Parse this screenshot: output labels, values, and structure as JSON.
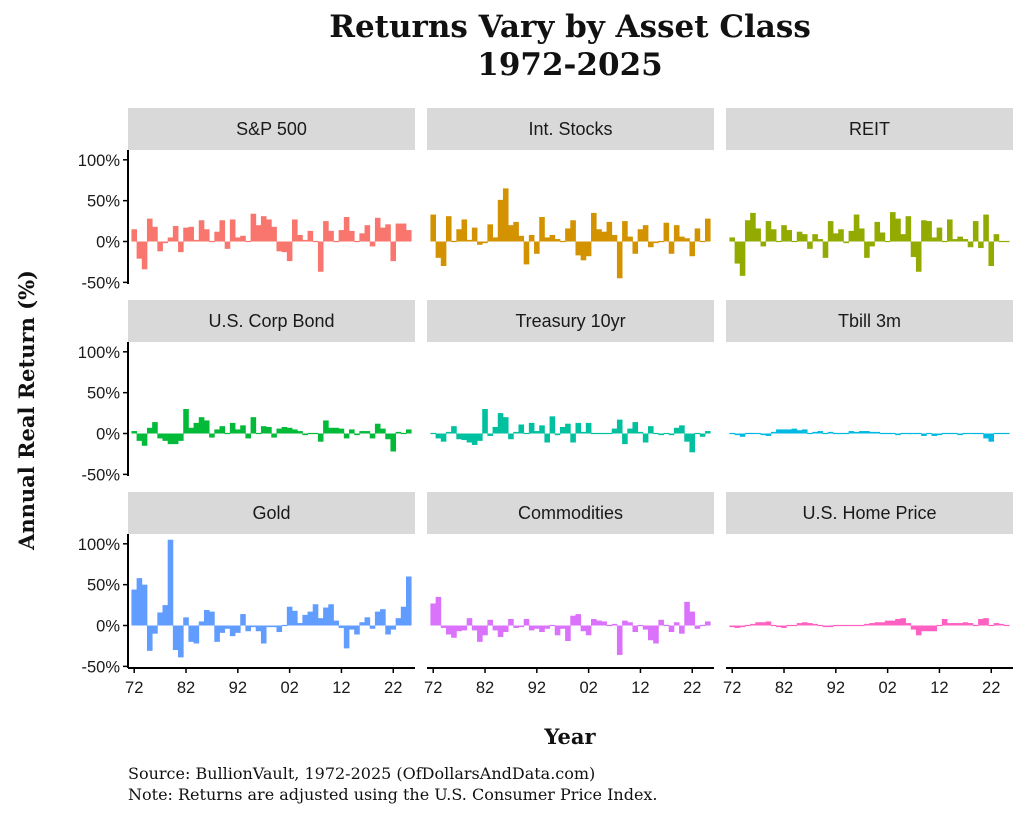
{
  "chart_data": {
    "type": "bar",
    "facet": "3x3",
    "title": [
      "Returns Vary by Asset Class",
      "1972-2025"
    ],
    "xlabel": "Year",
    "ylabel": "Annual Real Return (%)",
    "x": [
      1972,
      1973,
      1974,
      1975,
      1976,
      1977,
      1978,
      1979,
      1980,
      1981,
      1982,
      1983,
      1984,
      1985,
      1986,
      1987,
      1988,
      1989,
      1990,
      1991,
      1992,
      1993,
      1994,
      1995,
      1996,
      1997,
      1998,
      1999,
      2000,
      2001,
      2002,
      2003,
      2004,
      2005,
      2006,
      2007,
      2008,
      2009,
      2010,
      2011,
      2012,
      2013,
      2014,
      2015,
      2016,
      2017,
      2018,
      2019,
      2020,
      2021,
      2022,
      2023,
      2024,
      2025
    ],
    "x_ticks": [
      "72",
      "82",
      "92",
      "02",
      "12",
      "22"
    ],
    "x_tick_years": [
      1972,
      1982,
      1992,
      2002,
      2012,
      2022
    ],
    "ylim": [
      -52,
      112
    ],
    "y_ticks": [
      -50,
      0,
      50,
      100
    ],
    "y_tick_labels": [
      "-50%",
      "0%",
      "50%",
      "100%"
    ],
    "grid": false,
    "legend": "none",
    "panels": [
      {
        "name": "S&P 500",
        "color": "#F8766D",
        "values": [
          15,
          -21,
          -34,
          28,
          18,
          -12,
          -2,
          5,
          19,
          -13,
          17,
          18,
          2,
          26,
          15,
          1,
          12,
          26,
          -9,
          27,
          5,
          7,
          -1,
          34,
          20,
          31,
          27,
          18,
          -12,
          -13,
          -24,
          27,
          8,
          2,
          13,
          1,
          -37,
          25,
          13,
          -1,
          14,
          30,
          13,
          0,
          10,
          20,
          -6,
          29,
          17,
          21,
          -24,
          22,
          22,
          14
        ]
      },
      {
        "name": "Int. Stocks",
        "color": "#D39200",
        "values": [
          33,
          -20,
          -30,
          31,
          0,
          15,
          27,
          2,
          17,
          -4,
          -2,
          21,
          5,
          51,
          65,
          20,
          24,
          7,
          -28,
          8,
          -15,
          30,
          5,
          8,
          3,
          -1,
          16,
          26,
          -17,
          -23,
          -18,
          35,
          15,
          12,
          24,
          8,
          -45,
          25,
          6,
          -15,
          15,
          20,
          -7,
          -2,
          -1,
          23,
          -15,
          20,
          6,
          4,
          -18,
          16,
          1,
          28
        ]
      },
      {
        "name": "REIT",
        "color": "#93AA00",
        "values": [
          5,
          -27,
          -42,
          26,
          35,
          16,
          -6,
          25,
          15,
          -1,
          20,
          14,
          0,
          12,
          9,
          -9,
          9,
          3,
          -20,
          25,
          10,
          15,
          -2,
          13,
          33,
          16,
          -20,
          -6,
          24,
          11,
          1,
          36,
          28,
          9,
          31,
          -19,
          -37,
          26,
          25,
          5,
          17,
          1,
          27,
          3,
          6,
          3,
          -7,
          25,
          -8,
          33,
          -30,
          9,
          -1,
          -1
        ]
      },
      {
        "name": "U.S. Corp Bond",
        "color": "#00BA38",
        "values": [
          3,
          -9,
          -15,
          7,
          14,
          -6,
          -9,
          -13,
          -13,
          -9,
          30,
          7,
          13,
          20,
          16,
          -5,
          5,
          9,
          0,
          13,
          5,
          10,
          -6,
          20,
          1,
          9,
          8,
          -5,
          6,
          8,
          7,
          5,
          3,
          -2,
          1,
          1,
          -10,
          16,
          7,
          7,
          6,
          -6,
          5,
          -2,
          3,
          3,
          -6,
          12,
          6,
          -7,
          -22,
          2,
          -1,
          5
        ]
      },
      {
        "name": "Treasury 10yr",
        "color": "#00C19F",
        "values": [
          -1,
          -6,
          -10,
          2,
          9,
          -7,
          -8,
          -11,
          -14,
          -9,
          30,
          -3,
          8,
          25,
          20,
          -7,
          2,
          11,
          -1,
          13,
          3,
          10,
          -11,
          21,
          -2,
          8,
          12,
          -11,
          13,
          2,
          13,
          -1,
          1,
          0,
          -1,
          6,
          17,
          -13,
          6,
          14,
          2,
          -11,
          9,
          0,
          -2,
          0,
          -2,
          7,
          10,
          -10,
          -23,
          -1,
          -4,
          3
        ]
      },
      {
        "name": "Tbill 3m",
        "color": "#00B9E3",
        "values": [
          0,
          -2,
          -4,
          -1,
          0,
          -1,
          -2,
          -3,
          2,
          5,
          5,
          5,
          6,
          4,
          5,
          1,
          2,
          3,
          1,
          2,
          1,
          0,
          1,
          3,
          2,
          3,
          3,
          2,
          2,
          0,
          -1,
          -1,
          -2,
          0,
          1,
          0,
          -1,
          -3,
          -1,
          -3,
          -2,
          -1,
          -1,
          0,
          -2,
          -1,
          0,
          0,
          -1,
          -6,
          -10,
          -1,
          1,
          1
        ]
      },
      {
        "name": "Gold",
        "color": "#619CFF",
        "values": [
          44,
          58,
          50,
          -31,
          -10,
          16,
          25,
          105,
          -30,
          -39,
          10,
          -20,
          -22,
          5,
          19,
          17,
          -20,
          -9,
          -4,
          -13,
          -9,
          14,
          -7,
          -2,
          -7,
          -22,
          -2,
          -2,
          -8,
          1,
          23,
          18,
          3,
          13,
          17,
          26,
          9,
          22,
          26,
          6,
          -3,
          -28,
          -5,
          -11,
          4,
          10,
          -4,
          17,
          20,
          -11,
          -5,
          9,
          23,
          60
        ]
      },
      {
        "name": "Commodities",
        "color": "#DB72FB",
        "values": [
          27,
          35,
          -3,
          -11,
          -15,
          -7,
          -6,
          9,
          -6,
          -20,
          -12,
          7,
          -6,
          -14,
          -8,
          8,
          -3,
          -2,
          8,
          -6,
          -4,
          -8,
          -4,
          1,
          -12,
          -4,
          -19,
          12,
          14,
          -7,
          -12,
          8,
          6,
          5,
          1,
          2,
          -36,
          6,
          4,
          -8,
          -1,
          -5,
          -18,
          -22,
          7,
          1,
          -8,
          4,
          -10,
          29,
          17,
          -4,
          0,
          5
        ]
      },
      {
        "name": "U.S. Home Price",
        "color": "#FF61C3",
        "values": [
          -2,
          -3,
          -2,
          1,
          2,
          4,
          4,
          5,
          1,
          -2,
          -3,
          0,
          1,
          3,
          4,
          3,
          2,
          1,
          -2,
          -2,
          -1,
          -1,
          0,
          0,
          0,
          1,
          2,
          3,
          4,
          4,
          6,
          6,
          8,
          9,
          3,
          -5,
          -12,
          -7,
          -7,
          -7,
          1,
          8,
          3,
          3,
          3,
          4,
          3,
          1,
          8,
          9,
          0,
          3,
          2,
          -1
        ]
      }
    ]
  }
}
